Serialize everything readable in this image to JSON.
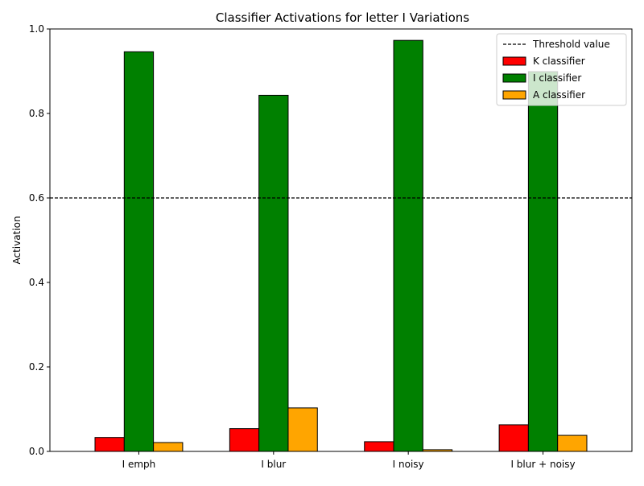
{
  "chart_data": {
    "type": "bar",
    "title": "Classifier Activations for letter I Variations",
    "xlabel": "",
    "ylabel": "Activation",
    "categories": [
      "I emph",
      "I blur",
      "I noisy",
      "I blur + noisy"
    ],
    "ylim": [
      0,
      1.0
    ],
    "yticks": [
      "0.0",
      "0.2",
      "0.4",
      "0.6",
      "0.8",
      "1.0"
    ],
    "series": [
      {
        "name": "K classifier",
        "color": "#ff0000",
        "values": [
          0.033,
          0.054,
          0.023,
          0.063
        ]
      },
      {
        "name": "I classifier",
        "color": "#008000",
        "values": [
          0.946,
          0.843,
          0.973,
          0.899
        ]
      },
      {
        "name": "A classifier",
        "color": "#ffa500",
        "values": [
          0.021,
          0.103,
          0.004,
          0.038
        ]
      }
    ],
    "threshold": {
      "name": "Threshold value",
      "value": 0.6,
      "style": "dashed",
      "color": "#000000"
    },
    "legend_position": "top-right",
    "grid": false
  }
}
